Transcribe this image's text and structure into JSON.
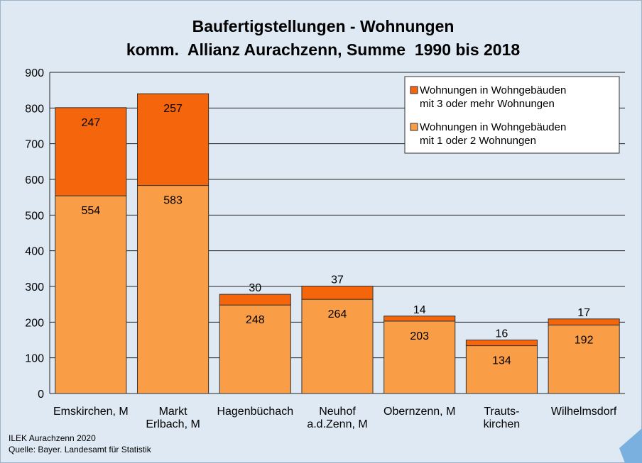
{
  "chart_data": {
    "type": "stacked_bar",
    "title": "Baufertigstellungen - Wohnungen",
    "subtitle": "komm.  Allianz Aurachzenn, Summe  1990 bis 2018",
    "categories": [
      "Emskirchen, M",
      "Markt\nErlbach, M",
      "Hagenbüchach",
      "Neuhof\na.d.Zenn, M",
      "Obernzenn, M",
      "Trauts-\nkirchen",
      "Wilhelmsdorf"
    ],
    "series": [
      {
        "name": "Wohnungen in Wohngebäuden\nmit 1 oder 2 Wohnungen",
        "color": "#f99d46",
        "values": [
          554,
          583,
          248,
          264,
          203,
          134,
          192
        ]
      },
      {
        "name": "Wohnungen in Wohngebäuden\nmit 3 oder mehr Wohnungen",
        "color": "#f5650c",
        "values": [
          247,
          257,
          30,
          37,
          14,
          16,
          17
        ]
      }
    ],
    "ylim": [
      0,
      900
    ],
    "yticks": [
      0,
      100,
      200,
      300,
      400,
      500,
      600,
      700,
      800,
      900
    ],
    "grid": true,
    "legend": "top-right",
    "footnotes": [
      "ILEK Aurachzenn 2020",
      "Quelle: Bayer. Landesamt für Statistik"
    ]
  }
}
